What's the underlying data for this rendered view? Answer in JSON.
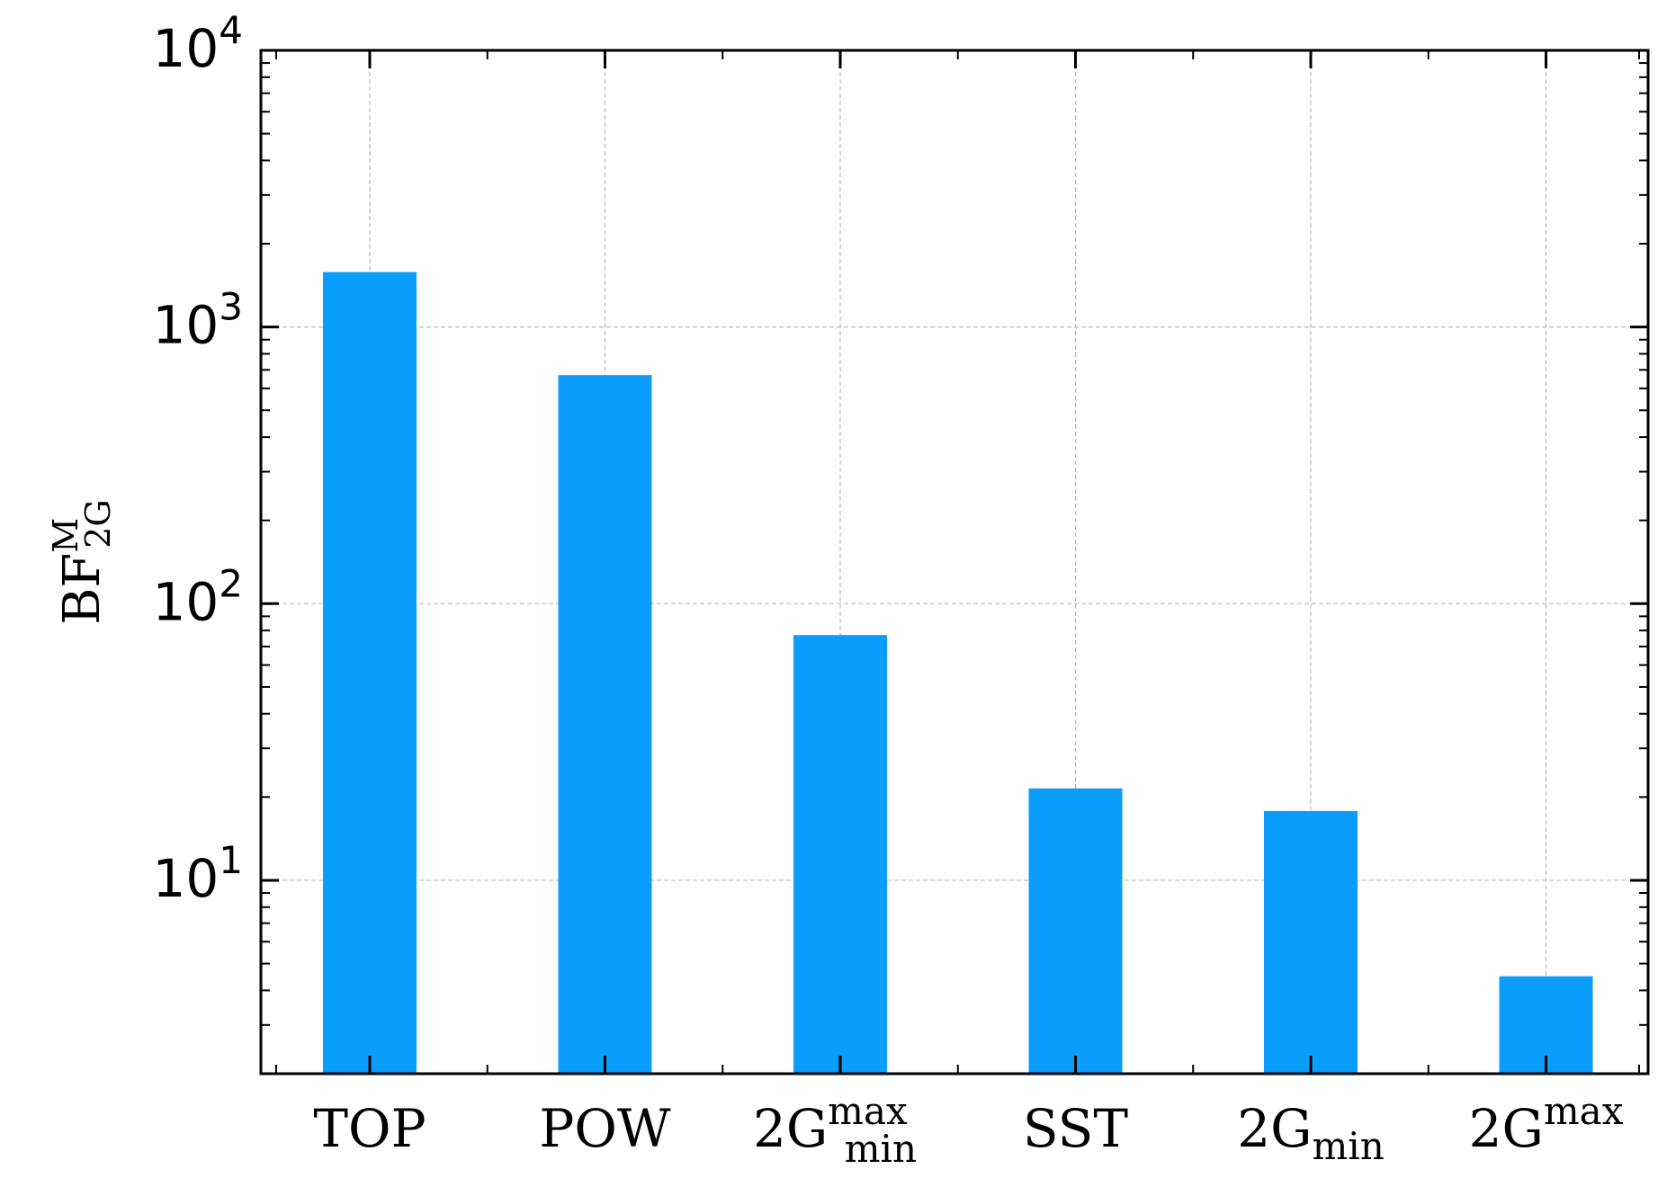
{
  "chart_data": {
    "type": "bar",
    "title": "",
    "xlabel": "",
    "ylabel": {
      "base": "BF",
      "superscript": "M",
      "subscript": "2G"
    },
    "yscale": "log",
    "ylim": [
      2,
      10000
    ],
    "grid": true,
    "legend": "none",
    "bar_color": "#0b9dfb",
    "categories": [
      {
        "main": "TOP",
        "sup": "",
        "sub": ""
      },
      {
        "main": "POW",
        "sup": "",
        "sub": ""
      },
      {
        "main": "2G",
        "sup": "max",
        "sub": "min"
      },
      {
        "main": "SST",
        "sup": "",
        "sub": ""
      },
      {
        "main": "2G",
        "sup": "",
        "sub": "min"
      },
      {
        "main": "2G",
        "sup": "max",
        "sub": ""
      }
    ],
    "values": [
      1580,
      670,
      77,
      21.5,
      17.8,
      4.5
    ],
    "yticks": [
      {
        "base": "10",
        "exp": "1",
        "value": 10
      },
      {
        "base": "10",
        "exp": "2",
        "value": 100
      },
      {
        "base": "10",
        "exp": "3",
        "value": 1000
      },
      {
        "base": "10",
        "exp": "4",
        "value": 10000
      }
    ]
  }
}
